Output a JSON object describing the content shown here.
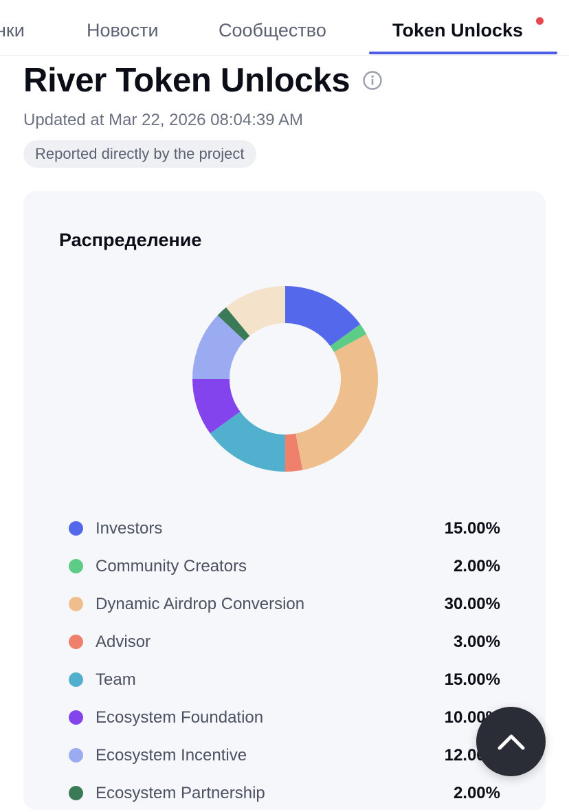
{
  "tabs": [
    {
      "label": "нки",
      "active": false
    },
    {
      "label": "Новости",
      "active": false
    },
    {
      "label": "Сообщество",
      "active": false
    },
    {
      "label": "Token Unlocks",
      "active": true
    }
  ],
  "colors": {
    "accent": "#4b5de4",
    "notification_dot": "#e5484d"
  },
  "header": {
    "title": "River Token Unlocks",
    "info_icon": "info-circle-icon",
    "updated": "Updated at Mar 22, 2026 08:04:39 AM",
    "badge": "Reported directly by the project"
  },
  "distribution": {
    "title": "Распределение"
  },
  "chart_data": {
    "type": "pie",
    "donut": true,
    "start": "top",
    "direction": "clockwise",
    "categories": [
      "Investors",
      "Community Creators",
      "Dynamic Airdrop Conversion",
      "Advisor",
      "Team",
      "Ecosystem Foundation",
      "Ecosystem Incentive",
      "Ecosystem Partnership",
      ""
    ],
    "values": [
      15,
      2,
      30,
      3,
      15,
      10,
      12,
      2,
      11
    ],
    "colors": [
      "#5468ec",
      "#5ccc86",
      "#eebf8c",
      "#ee806c",
      "#52b0cf",
      "#8344ee",
      "#9aabf2",
      "#3a7a56",
      "#f4e2cb"
    ]
  },
  "legend": [
    {
      "label": "Investors",
      "value": "15.00%",
      "color": "#5468ec"
    },
    {
      "label": "Community Creators",
      "value": "2.00%",
      "color": "#5ccc86"
    },
    {
      "label": "Dynamic Airdrop Conversion",
      "value": "30.00%",
      "color": "#eebf8c"
    },
    {
      "label": "Advisor",
      "value": "3.00%",
      "color": "#ee806c"
    },
    {
      "label": "Team",
      "value": "15.00%",
      "color": "#52b0cf"
    },
    {
      "label": "Ecosystem Foundation",
      "value": "10.00%",
      "color": "#8344ee"
    },
    {
      "label": "Ecosystem Incentive",
      "value": "12.00%",
      "color": "#9aabf2"
    },
    {
      "label": "Ecosystem Partnership",
      "value": "2.00%",
      "color": "#3a7a56"
    }
  ],
  "scroll_top": {
    "icon": "chevron-up-icon"
  }
}
